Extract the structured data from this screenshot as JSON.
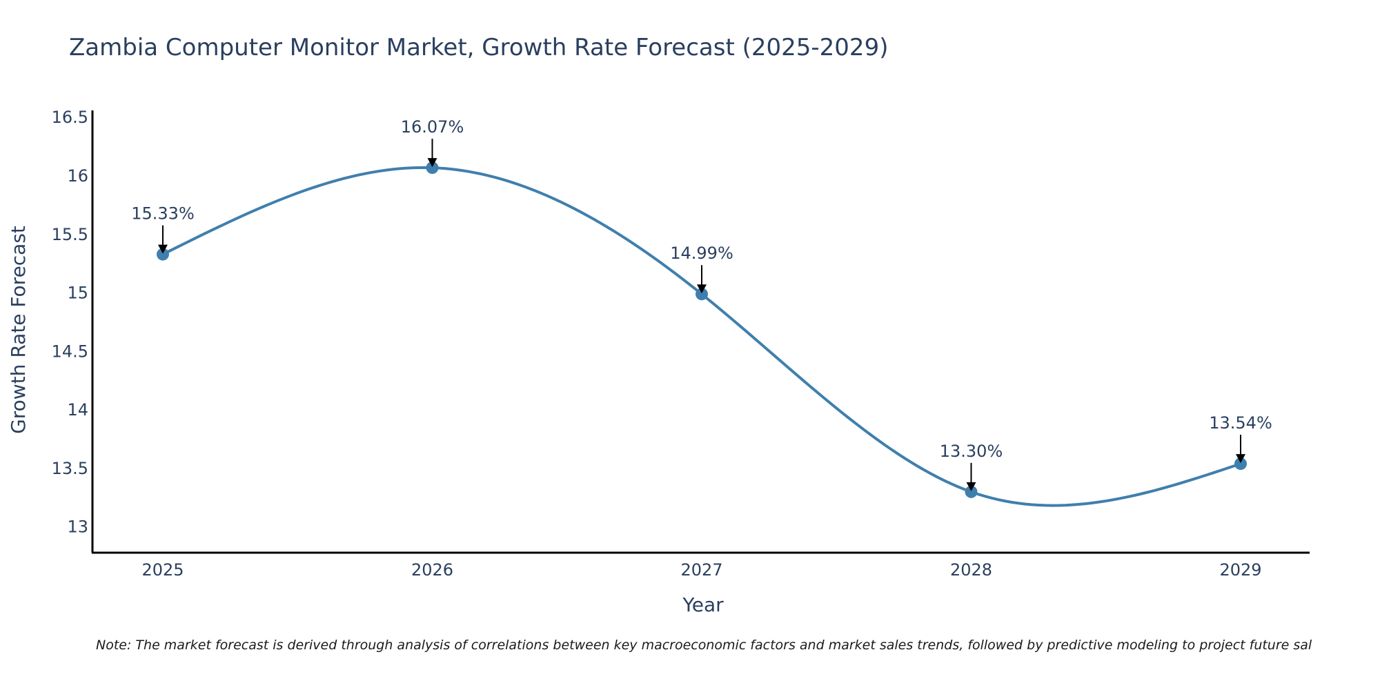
{
  "chart_data": {
    "type": "line",
    "title": "Zambia Computer Monitor Market, Growth Rate Forecast (2025-2029)",
    "xlabel": "Year",
    "ylabel": "Growth Rate Forecast",
    "categories": [
      "2025",
      "2026",
      "2027",
      "2028",
      "2029"
    ],
    "series": [
      {
        "name": "Growth Rate Forecast",
        "values": [
          15.33,
          16.07,
          14.99,
          13.3,
          13.54
        ],
        "labels": [
          "15.33%",
          "16.07%",
          "14.99%",
          "13.30%",
          "13.54%"
        ],
        "color": "#3f7fad"
      }
    ],
    "ylim": [
      12.78,
      16.56
    ],
    "yticks": [
      13,
      13.5,
      14,
      14.5,
      15,
      15.5,
      16,
      16.5
    ],
    "ytick_labels": [
      "13",
      "13.5",
      "14",
      "14.5",
      "15",
      "15.5",
      "16",
      "16.5"
    ],
    "grid": false,
    "legend": "none",
    "line_shape": "spline",
    "annotation_style": "arrow-down",
    "note": "Note: The market forecast is derived through analysis of correlations between key macroeconomic factors and market sales trends, followed by predictive modeling to project future sal"
  },
  "colors": {
    "line": "#3f7fad",
    "text": "#2a3f5f",
    "axis": "#000000",
    "note": "#1a1a1a"
  }
}
